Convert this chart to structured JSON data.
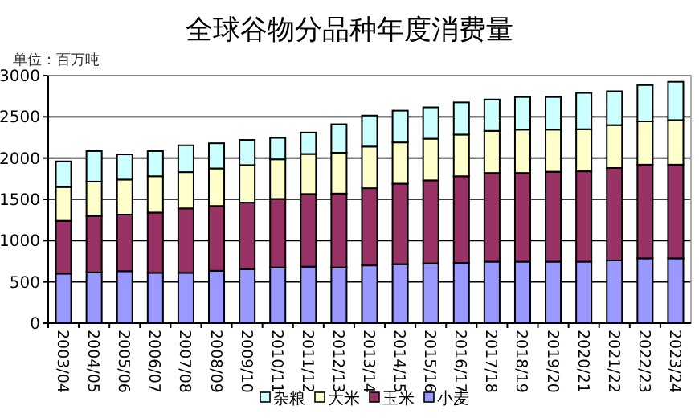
{
  "chart_data": {
    "type": "bar",
    "stacked": true,
    "title": "全球谷物分品种年度消费量",
    "annotations": [
      "单位：百万吨"
    ],
    "categories": [
      "2003/04",
      "2004/05",
      "2005/06",
      "2006/07",
      "2007/08",
      "2008/09",
      "2009/10",
      "2010/11",
      "2011/12",
      "2012/13",
      "2013/14",
      "2014/15",
      "2015/16",
      "2016/17",
      "2017/18",
      "2018/19",
      "2019/20",
      "2020/21",
      "2021/22",
      "2022/23",
      "2023/24"
    ],
    "series": [
      {
        "name": "小麦",
        "color": "#9999ff",
        "values": [
          600,
          615,
          630,
          610,
          610,
          635,
          655,
          675,
          685,
          675,
          700,
          715,
          725,
          730,
          745,
          745,
          745,
          745,
          760,
          785,
          785
        ]
      },
      {
        "name": "玉米",
        "color": "#993366",
        "values": [
          640,
          685,
          685,
          730,
          780,
          785,
          805,
          830,
          880,
          895,
          935,
          975,
          1005,
          1050,
          1075,
          1075,
          1090,
          1095,
          1120,
          1135,
          1135
        ]
      },
      {
        "name": "大米",
        "color": "#ffffcc",
        "values": [
          410,
          415,
          425,
          440,
          440,
          455,
          455,
          480,
          485,
          495,
          505,
          500,
          505,
          505,
          510,
          525,
          510,
          510,
          520,
          525,
          540
        ]
      },
      {
        "name": "杂粮",
        "color": "#ccffff",
        "values": [
          310,
          370,
          305,
          305,
          325,
          305,
          305,
          260,
          260,
          345,
          375,
          385,
          380,
          390,
          380,
          395,
          395,
          440,
          410,
          440,
          465
        ]
      }
    ],
    "ylim": [
      0,
      3000
    ],
    "yticks": [
      0,
      500,
      1000,
      1500,
      2000,
      2500,
      3000
    ],
    "grid": "y",
    "legend": "bottom"
  }
}
